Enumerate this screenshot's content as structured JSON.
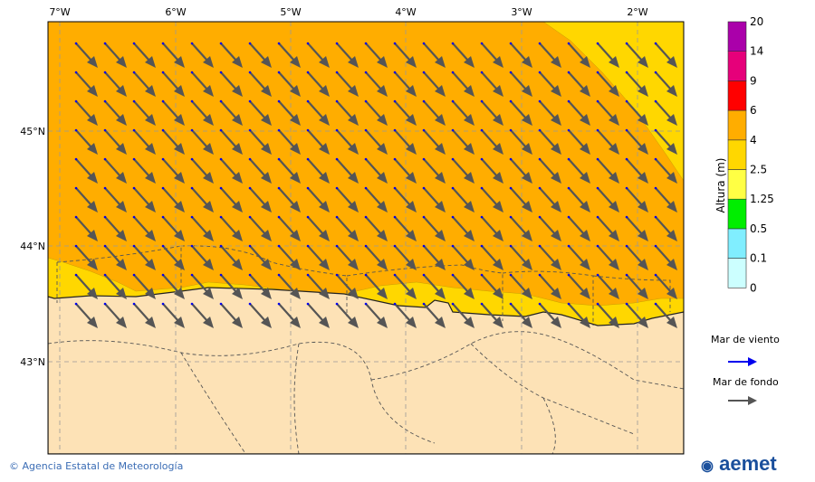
{
  "map": {
    "lon_labels": [
      "7°W",
      "6°W",
      "5°W",
      "4°W",
      "3°W",
      "2°W"
    ],
    "lat_labels": [
      "45°N",
      "44°N",
      "43°N"
    ]
  },
  "colorbar": {
    "title": "Altura (m)",
    "ticks": [
      "0",
      "0.1",
      "0.5",
      "1.25",
      "2.5",
      "4",
      "6",
      "9",
      "14",
      "20"
    ],
    "colors": [
      "#ccffff",
      "#80eeff",
      "#00ee00",
      "#ffff44",
      "#ffd700",
      "#ffad00",
      "#ff0000",
      "#e6007a",
      "#aa00aa"
    ]
  },
  "legend": {
    "wind_sea": "Mar de viento",
    "wind_sea_color": "#0000ee",
    "swell": "Mar de fondo",
    "swell_color": "#555555"
  },
  "footer": {
    "credit": "© Agencia Estatal de Meteorología"
  },
  "logo": {
    "text": "aemet"
  }
}
